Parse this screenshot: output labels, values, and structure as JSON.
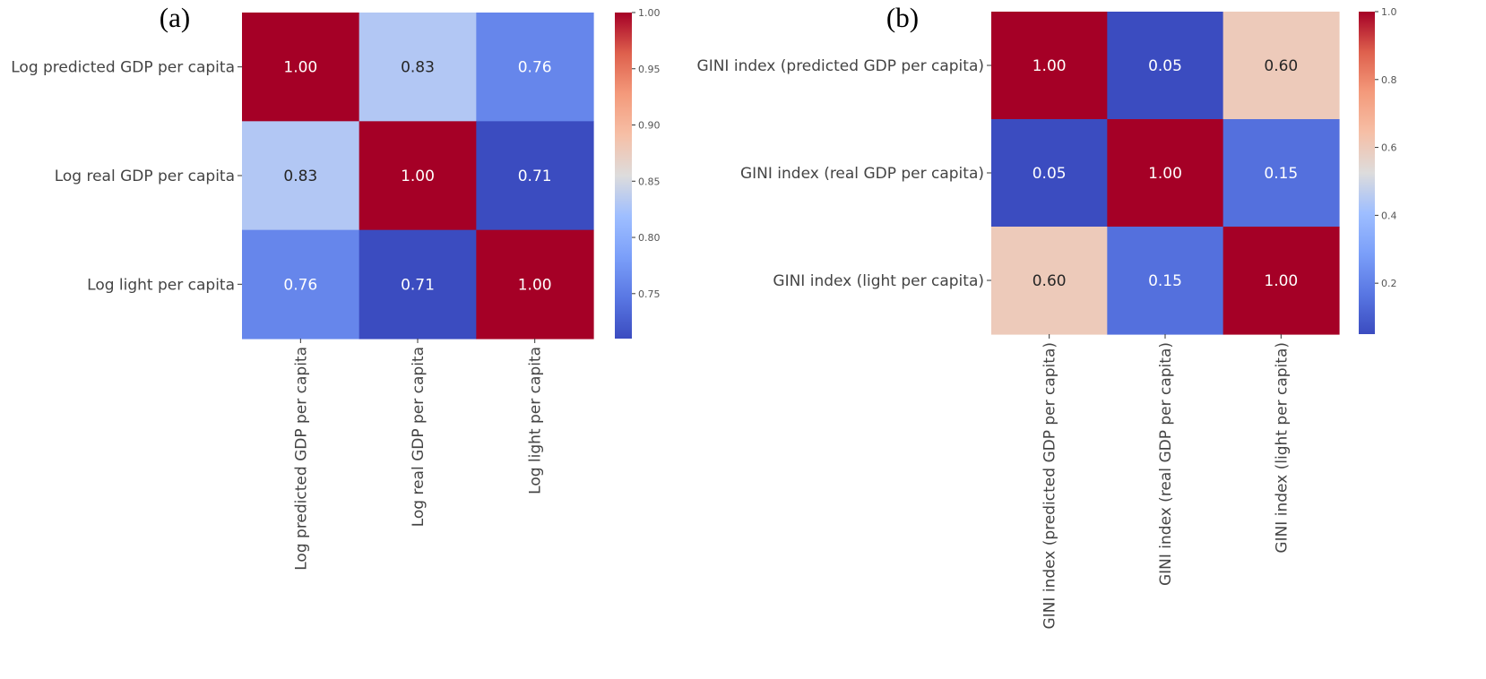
{
  "chart_data": [
    {
      "type": "heatmap",
      "panel_label": "(a)",
      "rows": [
        "Log predicted GDP per capita",
        "Log real GDP per capita",
        "Log light per capita"
      ],
      "columns": [
        "Log predicted GDP per capita",
        "Log real GDP per capita",
        "Log light per capita"
      ],
      "values": [
        [
          1.0,
          0.83,
          0.76
        ],
        [
          0.83,
          1.0,
          0.71
        ],
        [
          0.76,
          0.71,
          1.0
        ]
      ],
      "value_labels": [
        [
          "1.00",
          "0.83",
          "0.76"
        ],
        [
          "0.83",
          "1.00",
          "0.71"
        ],
        [
          "0.76",
          "0.71",
          "1.00"
        ]
      ],
      "colormap": "coolwarm",
      "vmin": 0.71,
      "vmax": 1.0,
      "colorbar_ticks": [
        0.75,
        0.8,
        0.85,
        0.9,
        0.95,
        1.0
      ],
      "colorbar_tick_labels": [
        "0.75",
        "0.80",
        "0.85",
        "0.90",
        "0.95",
        "1.00"
      ]
    },
    {
      "type": "heatmap",
      "panel_label": "(b)",
      "rows": [
        "GINI index (predicted GDP per capita)",
        "GINI index (real GDP per capita)",
        "GINI index (light per capita)"
      ],
      "columns": [
        "GINI index (predicted GDP per capita)",
        "GINI index (real GDP per capita)",
        "GINI index (light per capita)"
      ],
      "values": [
        [
          1.0,
          0.05,
          0.6
        ],
        [
          0.05,
          1.0,
          0.15
        ],
        [
          0.6,
          0.15,
          1.0
        ]
      ],
      "value_labels": [
        [
          "1.00",
          "0.05",
          "0.60"
        ],
        [
          "0.05",
          "1.00",
          "0.15"
        ],
        [
          "0.60",
          "0.15",
          "1.00"
        ]
      ],
      "colormap": "coolwarm",
      "vmin": 0.05,
      "vmax": 1.0,
      "colorbar_ticks": [
        0.2,
        0.4,
        0.6,
        0.8,
        1.0
      ],
      "colorbar_tick_labels": [
        "0.2",
        "0.4",
        "0.6",
        "0.8",
        "1.0"
      ]
    }
  ]
}
